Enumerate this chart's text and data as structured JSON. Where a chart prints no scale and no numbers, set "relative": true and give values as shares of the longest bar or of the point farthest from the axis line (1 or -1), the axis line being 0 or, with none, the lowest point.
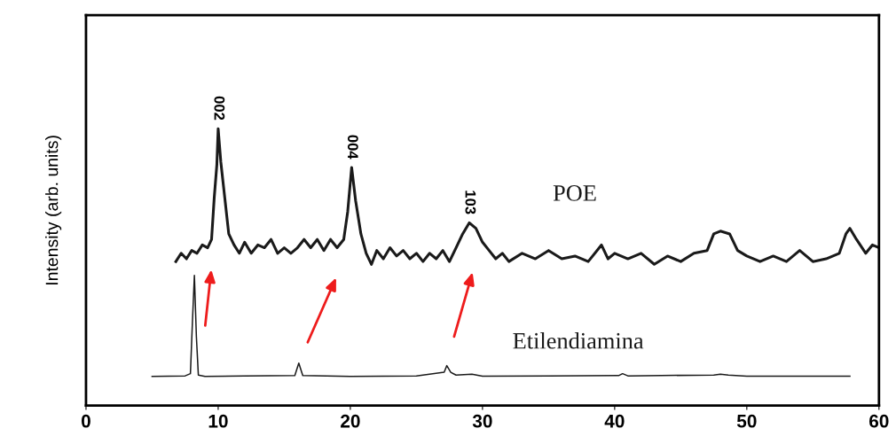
{
  "chart_data": {
    "type": "line",
    "relative": true,
    "ylabel": "Intensity (arb. units)",
    "xlim": [
      0,
      60
    ],
    "xticks": [
      0,
      10,
      20,
      30,
      40,
      50,
      60
    ],
    "grid": false,
    "legend": false,
    "marker": "none",
    "line_style": "solid",
    "series": [
      {
        "name": "POE",
        "color": "#1a1a1a",
        "x": [
          6.8,
          7.2,
          7.6,
          8.0,
          8.4,
          8.8,
          9.2,
          9.5,
          9.7,
          9.9,
          10.0,
          10.2,
          10.5,
          10.8,
          11.2,
          11.6,
          12,
          12.5,
          13,
          13.5,
          14,
          14.5,
          15,
          15.5,
          16,
          16.5,
          17,
          17.5,
          18,
          18.5,
          19,
          19.5,
          19.8,
          20.1,
          20.4,
          20.8,
          21.2,
          21.6,
          22,
          22.5,
          23,
          23.5,
          24,
          24.5,
          25,
          25.5,
          26,
          26.5,
          27,
          27.5,
          28,
          28.5,
          29,
          29.5,
          30,
          30.5,
          31,
          31.5,
          32,
          33,
          34,
          35,
          36,
          37,
          38,
          39,
          39.5,
          40,
          41,
          42,
          43,
          44,
          45,
          46,
          47,
          47.5,
          48,
          48.7,
          49.3,
          50,
          51,
          52,
          53,
          54,
          55,
          56,
          57,
          57.5,
          57.8,
          58.3,
          59,
          59.5,
          60
        ],
        "values": [
          0.52,
          0.55,
          0.53,
          0.56,
          0.55,
          0.58,
          0.57,
          0.6,
          0.75,
          0.87,
          1.0,
          0.88,
          0.75,
          0.62,
          0.58,
          0.55,
          0.59,
          0.55,
          0.58,
          0.57,
          0.6,
          0.55,
          0.57,
          0.55,
          0.57,
          0.6,
          0.57,
          0.6,
          0.56,
          0.6,
          0.57,
          0.6,
          0.7,
          0.86,
          0.74,
          0.62,
          0.55,
          0.51,
          0.56,
          0.53,
          0.57,
          0.54,
          0.56,
          0.53,
          0.55,
          0.52,
          0.55,
          0.53,
          0.56,
          0.52,
          0.57,
          0.62,
          0.66,
          0.64,
          0.59,
          0.56,
          0.53,
          0.55,
          0.52,
          0.55,
          0.53,
          0.56,
          0.53,
          0.54,
          0.52,
          0.58,
          0.53,
          0.55,
          0.53,
          0.55,
          0.51,
          0.54,
          0.52,
          0.55,
          0.56,
          0.62,
          0.63,
          0.62,
          0.56,
          0.54,
          0.52,
          0.54,
          0.52,
          0.56,
          0.52,
          0.53,
          0.55,
          0.62,
          0.64,
          0.6,
          0.55,
          0.58,
          0.57
        ]
      },
      {
        "name": "Etilendiamina",
        "color": "#1a1a1a",
        "x": [
          5,
          7.5,
          7.9,
          8.05,
          8.2,
          8.35,
          8.5,
          9,
          12,
          15.8,
          16.1,
          16.4,
          20,
          25,
          27.1,
          27.3,
          27.6,
          28,
          29.2,
          30,
          35,
          40.3,
          40.6,
          41,
          47.5,
          48,
          48.6,
          50,
          57.8
        ],
        "values": [
          0.105,
          0.107,
          0.115,
          0.3,
          0.47,
          0.25,
          0.11,
          0.105,
          0.107,
          0.108,
          0.153,
          0.108,
          0.105,
          0.107,
          0.12,
          0.144,
          0.12,
          0.11,
          0.113,
          0.106,
          0.107,
          0.108,
          0.115,
          0.107,
          0.11,
          0.113,
          0.11,
          0.106,
          0.106
        ]
      }
    ],
    "annotations": [
      {
        "text": "002",
        "x": 10.0,
        "y": 1.0
      },
      {
        "text": "004",
        "x": 20.1,
        "y": 0.86
      },
      {
        "text": "103",
        "x": 29.0,
        "y": 0.66
      }
    ]
  }
}
